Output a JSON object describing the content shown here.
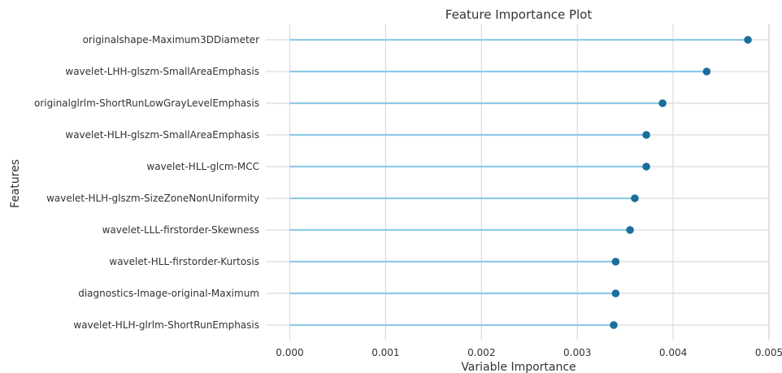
{
  "chart_data": {
    "type": "lollipop",
    "title": "Feature Importance Plot",
    "xlabel": "Variable Importance",
    "ylabel": "Features",
    "xlim": [
      -0.00025,
      0.005
    ],
    "xticks": [
      0.0,
      0.001,
      0.002,
      0.003,
      0.004,
      0.005
    ],
    "xtick_labels": [
      "0.000",
      "0.001",
      "0.002",
      "0.003",
      "0.004",
      "0.005"
    ],
    "grid": true,
    "stem_color": "#8ecae6",
    "marker_color": "#1a6f9c",
    "categories": [
      "originalshape-Maximum3DDiameter",
      "wavelet-LHH-glszm-SmallAreaEmphasis",
      "originalglrlm-ShortRunLowGrayLevelEmphasis",
      "wavelet-HLH-glszm-SmallAreaEmphasis",
      "wavelet-HLL-glcm-MCC",
      "wavelet-HLH-glszm-SizeZoneNonUniformity",
      "wavelet-LLL-firstorder-Skewness",
      "wavelet-HLL-firstorder-Kurtosis",
      "diagnostics-Image-original-Maximum",
      "wavelet-HLH-glrlm-ShortRunEmphasis"
    ],
    "values": [
      0.00478,
      0.00435,
      0.00389,
      0.00372,
      0.00372,
      0.0036,
      0.00355,
      0.0034,
      0.0034,
      0.00338
    ]
  }
}
